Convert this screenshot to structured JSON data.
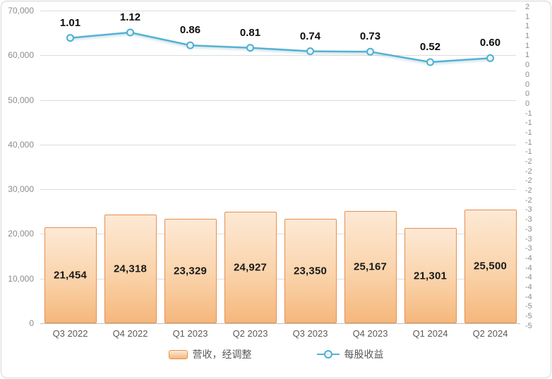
{
  "chart_data": {
    "type": "combo",
    "subtypes": [
      "bar",
      "line"
    ],
    "title": "",
    "categories": [
      "Q3 2022",
      "Q4 2022",
      "Q1 2023",
      "Q2 2023",
      "Q3 2023",
      "Q4 2023",
      "Q1 2024",
      "Q2 2024"
    ],
    "series": [
      {
        "name": "营收，经调整",
        "type": "bar",
        "axis": "left",
        "values": [
          21454,
          24318,
          23329,
          24927,
          23350,
          25167,
          21301,
          25500
        ],
        "labels": [
          "21,454",
          "24,318",
          "23,329",
          "24,927",
          "23,350",
          "25,167",
          "21,301",
          "25,500"
        ]
      },
      {
        "name": "每股收益",
        "type": "line",
        "axis": "right",
        "values": [
          1.01,
          1.12,
          0.86,
          0.81,
          0.74,
          0.73,
          0.52,
          0.6
        ],
        "labels": [
          "1.01",
          "1.12",
          "0.86",
          "0.81",
          "0.74",
          "0.73",
          "0.52",
          "0.60"
        ]
      }
    ],
    "left_axis": {
      "min": 0,
      "max": 70000,
      "ticks": [
        "70,000",
        "60,000",
        "50,000",
        "40,000",
        "30,000",
        "20,000",
        "10,000",
        "0"
      ]
    },
    "right_axis": {
      "ticks": [
        "2",
        "1",
        "1",
        "1",
        "1",
        "1",
        "0",
        "0",
        "0",
        "0",
        "0",
        "-1",
        "-1",
        "-1",
        "-1",
        "-1",
        "-2",
        "-2",
        "-2",
        "-2",
        "-2",
        "-3",
        "-3",
        "-3",
        "-3",
        "-3",
        "-4",
        "-4",
        "-4",
        "-4",
        "-4",
        "-5",
        "-5",
        "-5"
      ]
    },
    "grid": true,
    "legend_position": "bottom"
  },
  "colors": {
    "bar_border": "#e68f4f",
    "bar_fill_top": "#fde9d5",
    "bar_fill_bottom": "#f5b77c",
    "line": "#54b2d3",
    "marker_stroke": "#4fafd1",
    "marker_fill": "#eaf6fb",
    "grid": "#dcdcdc",
    "axis_text": "#8c8c8c",
    "category_text": "#595959",
    "data_label_text": "#0d0d0d"
  }
}
